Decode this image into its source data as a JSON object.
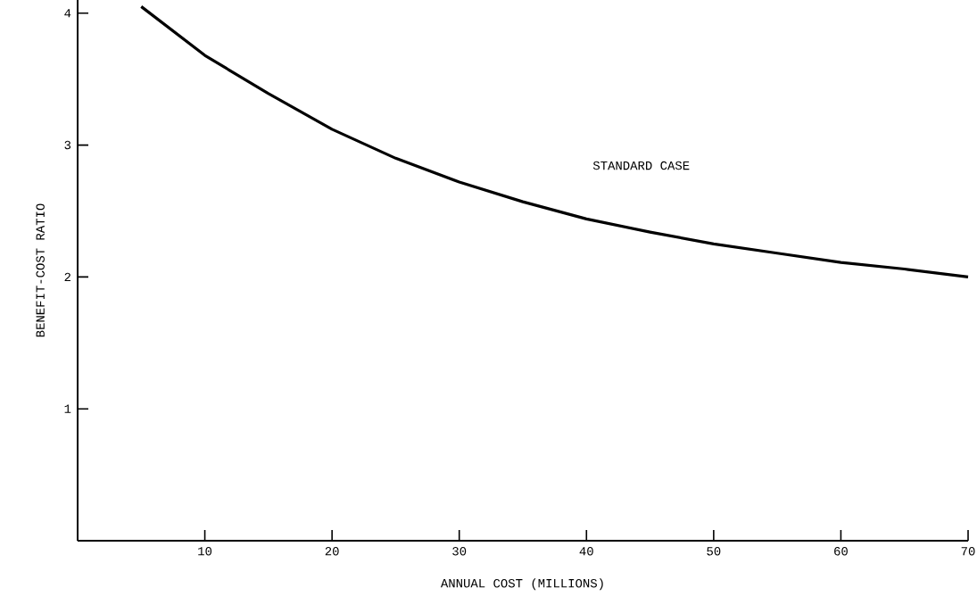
{
  "chart_data": {
    "type": "line",
    "xlabel": "ANNUAL COST (MILLIONS)",
    "ylabel": "BENEFIT-COST RATIO",
    "xlim": [
      0,
      70
    ],
    "ylim": [
      0,
      4.1
    ],
    "xticks": [
      10,
      20,
      30,
      40,
      50,
      60,
      70
    ],
    "yticks": [
      1,
      2,
      3,
      4
    ],
    "grid": false,
    "legend": false,
    "marker": "none",
    "line_style": "solid",
    "series": [
      {
        "name": "STANDARD CASE",
        "color": "#000000",
        "x": [
          5,
          10,
          15,
          20,
          25,
          30,
          35,
          40,
          45,
          50,
          55,
          60,
          65,
          70
        ],
        "values": [
          4.05,
          3.68,
          3.39,
          3.12,
          2.9,
          2.72,
          2.57,
          2.44,
          2.34,
          2.25,
          2.18,
          2.11,
          2.06,
          2.0
        ]
      }
    ]
  }
}
